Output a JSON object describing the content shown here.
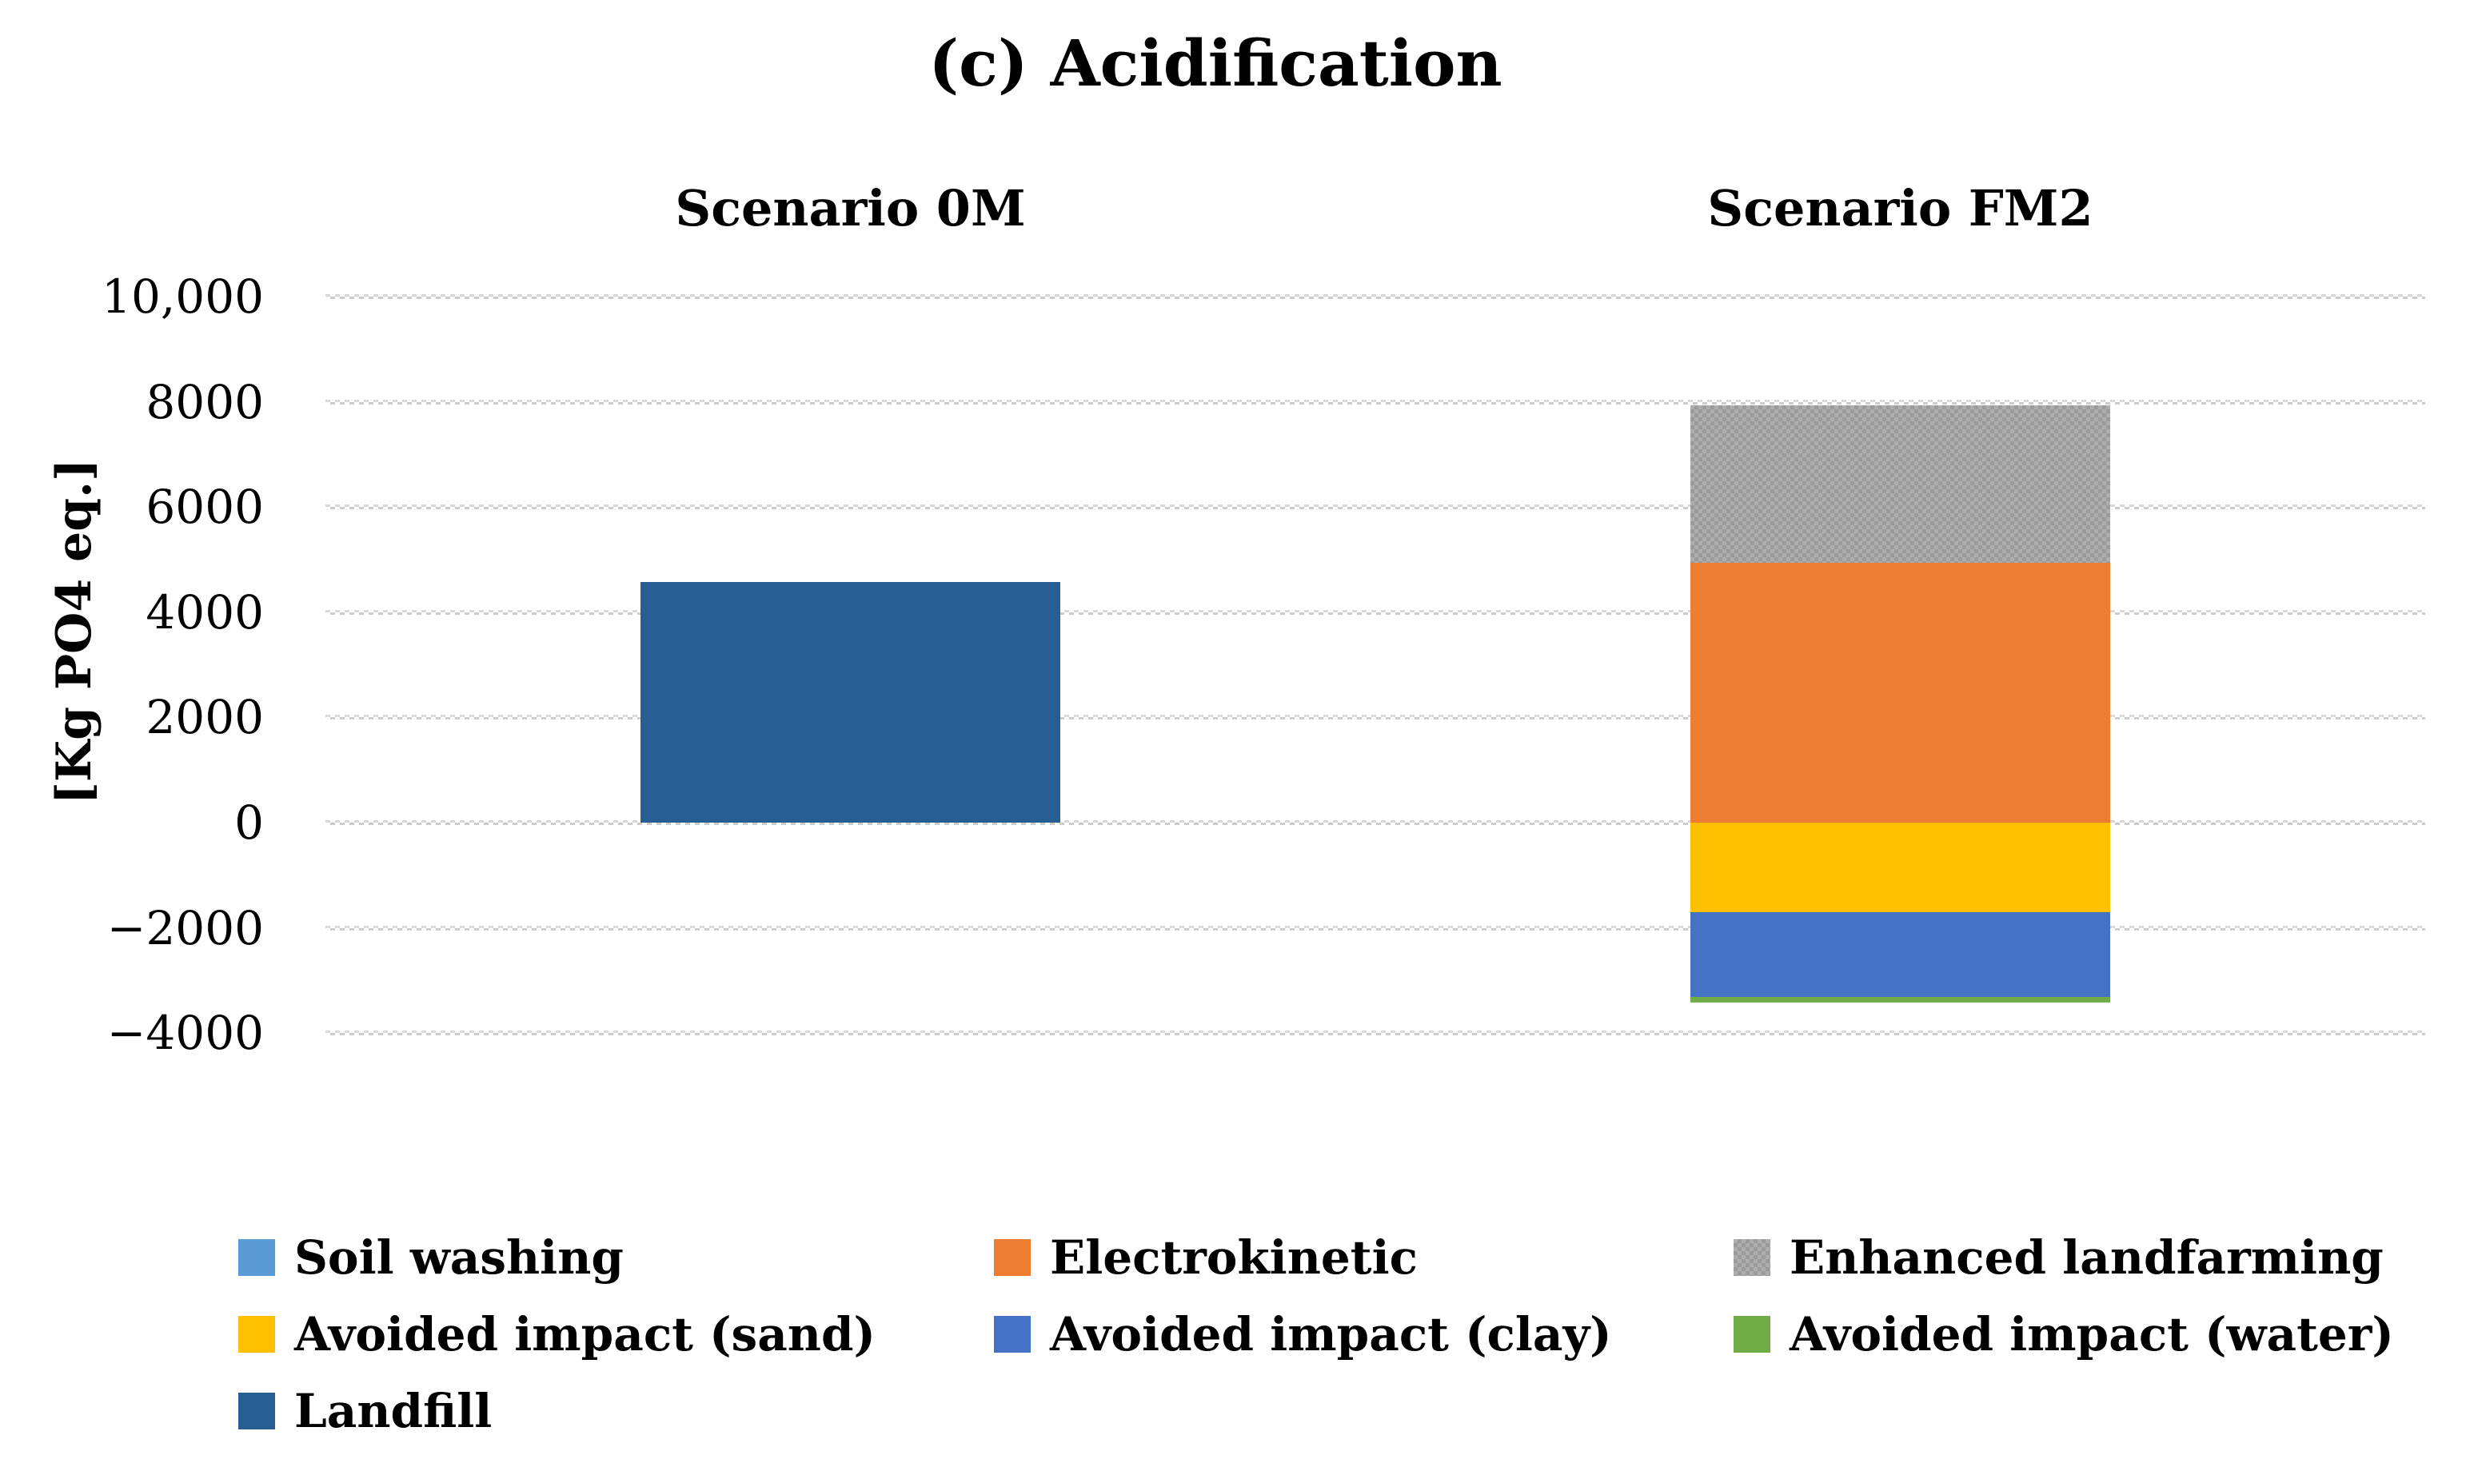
{
  "figure": {
    "title": "(c) Acidification",
    "background": "#ffffff"
  },
  "y_axis": {
    "label": "[Kg PO4 eq.]",
    "ticks": [
      {
        "label": "10,000",
        "value": 10000
      },
      {
        "label": "8000",
        "value": 8000
      },
      {
        "label": "6000",
        "value": 6000
      },
      {
        "label": "4000",
        "value": 4000
      },
      {
        "label": "2000",
        "value": 2000
      },
      {
        "label": "0",
        "value": 0
      },
      {
        "label": "−2000",
        "value": -2000
      },
      {
        "label": "−4000",
        "value": -4000
      }
    ]
  },
  "chart_data": {
    "type": "bar",
    "stacked": true,
    "categories": [
      "Scenario 0M",
      "Scenario FM2"
    ],
    "series": [
      {
        "name": "Soil washing",
        "color": "#5B9BD5",
        "pattern": "solid",
        "values": [
          0,
          0
        ]
      },
      {
        "name": "Electrokinetic",
        "color": "#ED7D31",
        "pattern": "solid",
        "values": [
          0,
          4940
        ]
      },
      {
        "name": "Enhanced landfarming",
        "color": "#ABABAB",
        "pattern": "checker",
        "values": [
          0,
          2990
        ]
      },
      {
        "name": "Avoided impact (sand)",
        "color": "#FFC000",
        "pattern": "solid",
        "values": [
          0,
          -1700
        ]
      },
      {
        "name": "Avoided impact (clay)",
        "color": "#4472C4",
        "pattern": "solid",
        "values": [
          0,
          -1620
        ]
      },
      {
        "name": "Avoided impact (water)",
        "color": "#70AD47",
        "pattern": "solid",
        "values": [
          0,
          -100
        ]
      },
      {
        "name": "Landfill",
        "color": "#275F94",
        "pattern": "solid",
        "values": [
          4580,
          0
        ]
      }
    ],
    "title": "(c) Acidification",
    "xlabel": "",
    "ylabel": "[Kg PO4 eq.]",
    "ylim": [
      -4000,
      10000
    ],
    "gridlines": "horizontal-dotted",
    "gridline_color": "#d6d6d6",
    "legend_position": "bottom"
  }
}
